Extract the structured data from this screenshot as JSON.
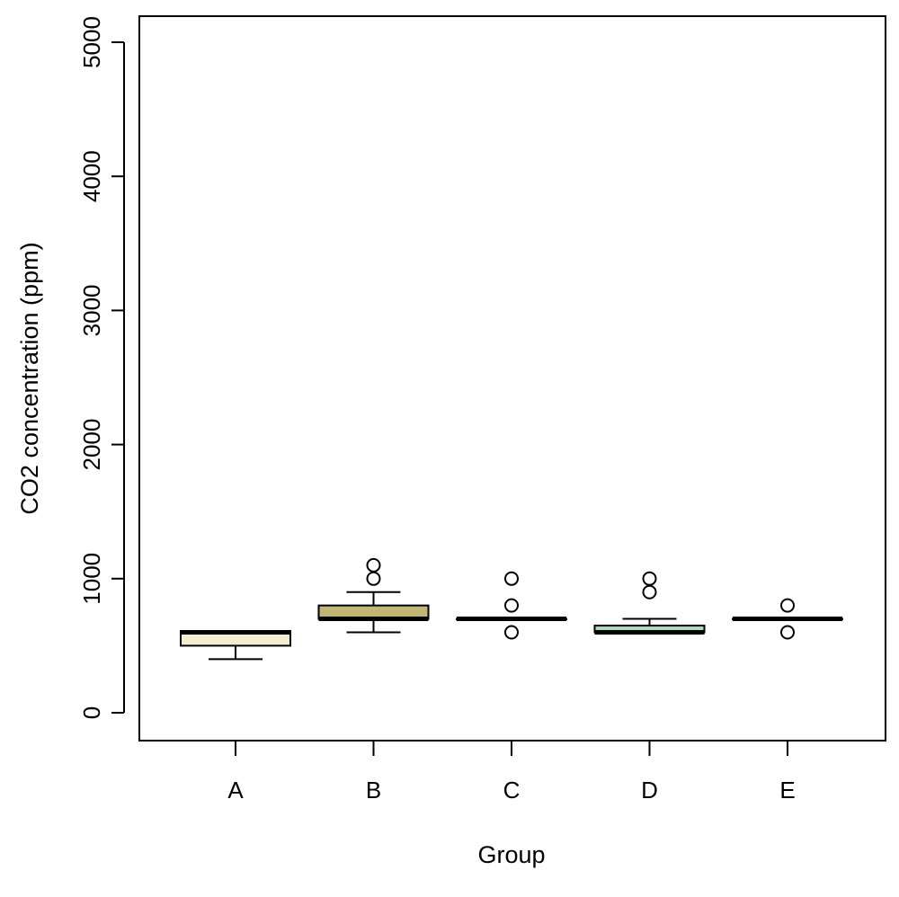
{
  "chart_data": {
    "type": "boxplot",
    "title": "",
    "xlabel": "Group",
    "ylabel": "CO2 concentration (ppm)",
    "ylim": [
      -200,
      5200
    ],
    "yticks": [
      0,
      1000,
      2000,
      3000,
      4000,
      5000
    ],
    "yticklabels": [
      "0",
      "1000",
      "2000",
      "3000",
      "4000",
      "5000"
    ],
    "grid": false,
    "legend": "none",
    "categories": [
      "A",
      "B",
      "C",
      "D",
      "E"
    ],
    "boxes": [
      {
        "category": "A",
        "color": "#F3EED0",
        "min": 400,
        "q1": 500,
        "median": 600,
        "q3": 610,
        "max": 610,
        "outliers": []
      },
      {
        "category": "B",
        "color": "#C2B672",
        "min": 600,
        "q1": 700,
        "median": 700,
        "q3": 800,
        "max": 900,
        "outliers": [
          1000,
          1100
        ]
      },
      {
        "category": "C",
        "color": "#C9D6B8",
        "min": 700,
        "q1": 700,
        "median": 700,
        "q3": 700,
        "max": 700,
        "outliers": [
          600,
          800,
          1000
        ]
      },
      {
        "category": "D",
        "color": "#A9DDB6",
        "min": 600,
        "q1": 600,
        "median": 600,
        "q3": 650,
        "max": 700,
        "outliers": [
          900,
          1000
        ]
      },
      {
        "category": "E",
        "color": "#D6CFA8",
        "min": 700,
        "q1": 700,
        "median": 700,
        "q3": 700,
        "max": 700,
        "outliers": [
          600,
          800
        ]
      }
    ]
  }
}
